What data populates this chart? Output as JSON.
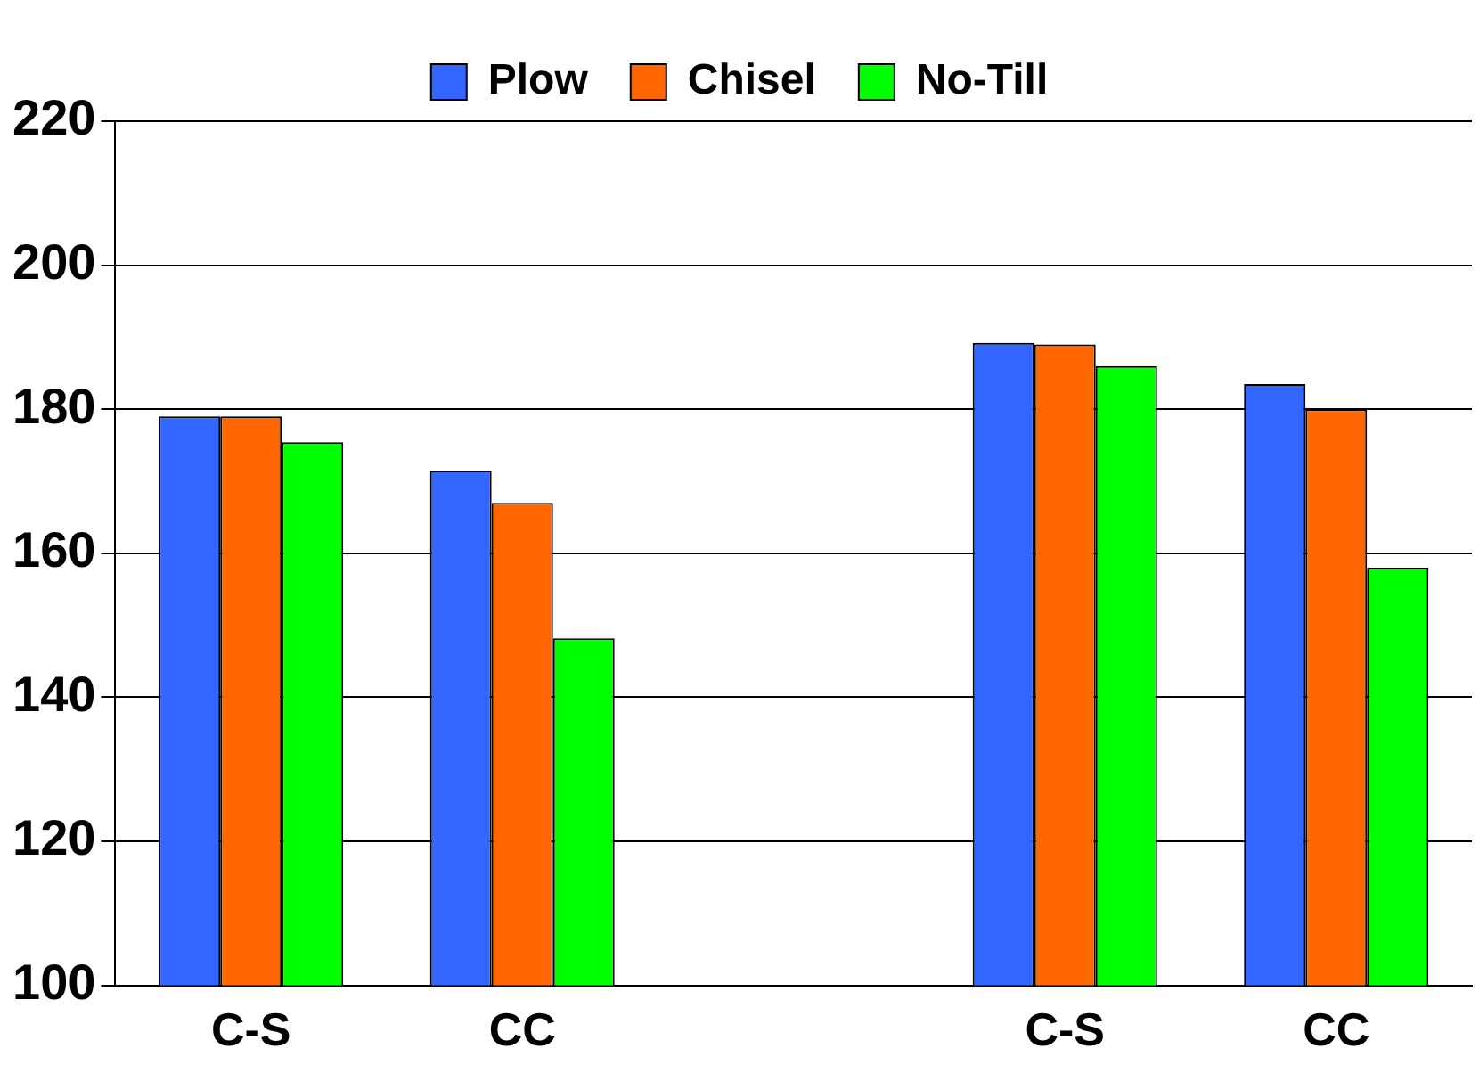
{
  "chart_data": {
    "type": "bar",
    "categories": [
      "C-S",
      "CC",
      null,
      "C-S",
      "CC"
    ],
    "series": [
      {
        "name": "Plow",
        "color": "#3366ff",
        "values": [
          179,
          171.5,
          null,
          189.2,
          183.5
        ]
      },
      {
        "name": "Chisel",
        "color": "#ff6600",
        "values": [
          179,
          167,
          null,
          189,
          180
        ]
      },
      {
        "name": "No-Till",
        "color": "#00ff00",
        "values": [
          175.4,
          148.2,
          null,
          186,
          158
        ]
      }
    ],
    "ylim": [
      100,
      220
    ],
    "yticks": [
      100,
      120,
      140,
      160,
      180,
      200,
      220
    ],
    "grid": "y",
    "legend": "top"
  }
}
